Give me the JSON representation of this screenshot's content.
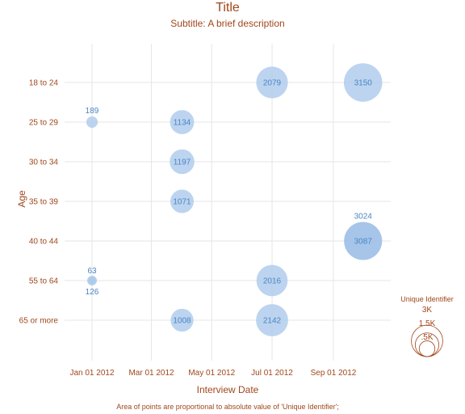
{
  "chart_data": {
    "type": "scatter",
    "title": "Title",
    "subtitle": "Subtitle: A brief description",
    "xlabel": "Interview Date",
    "ylabel": "Age",
    "footnote": "Area of points are proportional to absolute value of 'Unique Identifier';",
    "x_tick_labels": [
      "Jan 01 2012",
      "Mar 01 2012",
      "May 01 2012",
      "Jul 01 2012",
      "Sep 01 2012"
    ],
    "x_ticks": [
      "2012-01-01",
      "2012-03-01",
      "2012-05-01",
      "2012-07-01",
      "2012-09-01"
    ],
    "x_range": [
      "2011-12-01",
      "2012-10-31"
    ],
    "y_categories": [
      "18 to 24",
      "25 to 29",
      "30 to 34",
      "35 to 39",
      "40 to 44",
      "55 to 64",
      "65 or more"
    ],
    "grid": true,
    "size_legend": {
      "title": "Unique Identifier",
      "labels": [
        "3K",
        "1.5K",
        ".5K"
      ],
      "values": [
        3000,
        1500,
        500
      ],
      "placement": "right"
    },
    "points": [
      {
        "x": "2012-01-01",
        "y": "25 to 29",
        "size": 189,
        "label": "189",
        "label_pos": "above",
        "highlight": false
      },
      {
        "x": "2012-01-01",
        "y": "55 to 64",
        "size": 126,
        "label": "126",
        "label_pos": "below",
        "highlight": false
      },
      {
        "x": "2012-01-01",
        "y": "55 to 64",
        "size": 63,
        "label": "63",
        "label_pos": "above",
        "highlight": false
      },
      {
        "x": "2012-04-01",
        "y": "25 to 29",
        "size": 1134,
        "label": "1134",
        "label_pos": "center",
        "highlight": false
      },
      {
        "x": "2012-04-01",
        "y": "30 to 34",
        "size": 1197,
        "label": "1197",
        "label_pos": "center",
        "highlight": false
      },
      {
        "x": "2012-04-01",
        "y": "35 to 39",
        "size": 1071,
        "label": "1071",
        "label_pos": "center",
        "highlight": false
      },
      {
        "x": "2012-04-01",
        "y": "65 or more",
        "size": 1008,
        "label": "1008",
        "label_pos": "center",
        "highlight": false
      },
      {
        "x": "2012-07-01",
        "y": "18 to 24",
        "size": 2079,
        "label": "2079",
        "label_pos": "center",
        "highlight": false
      },
      {
        "x": "2012-07-01",
        "y": "55 to 64",
        "size": 2016,
        "label": "2016",
        "label_pos": "center",
        "highlight": false
      },
      {
        "x": "2012-07-01",
        "y": "65 or more",
        "size": 2142,
        "label": "2142",
        "label_pos": "center",
        "highlight": false
      },
      {
        "x": "2012-10-01",
        "y": "18 to 24",
        "size": 3150,
        "label": "3150",
        "label_pos": "center",
        "highlight": false
      },
      {
        "x": "2012-10-01",
        "y": "40 to 44",
        "size": 3024,
        "label": "3024",
        "label_pos": "above",
        "highlight": false
      },
      {
        "x": "2012-10-01",
        "y": "40 to 44",
        "size": 3087,
        "label": "3087",
        "label_pos": "center",
        "highlight": true
      }
    ],
    "colors": {
      "bubble": "#a9c8ea",
      "bubble_highlight": "#7fa9dc",
      "label": "#4a86c5",
      "text": "#a0471c",
      "grid": "#e6e6e6"
    }
  }
}
